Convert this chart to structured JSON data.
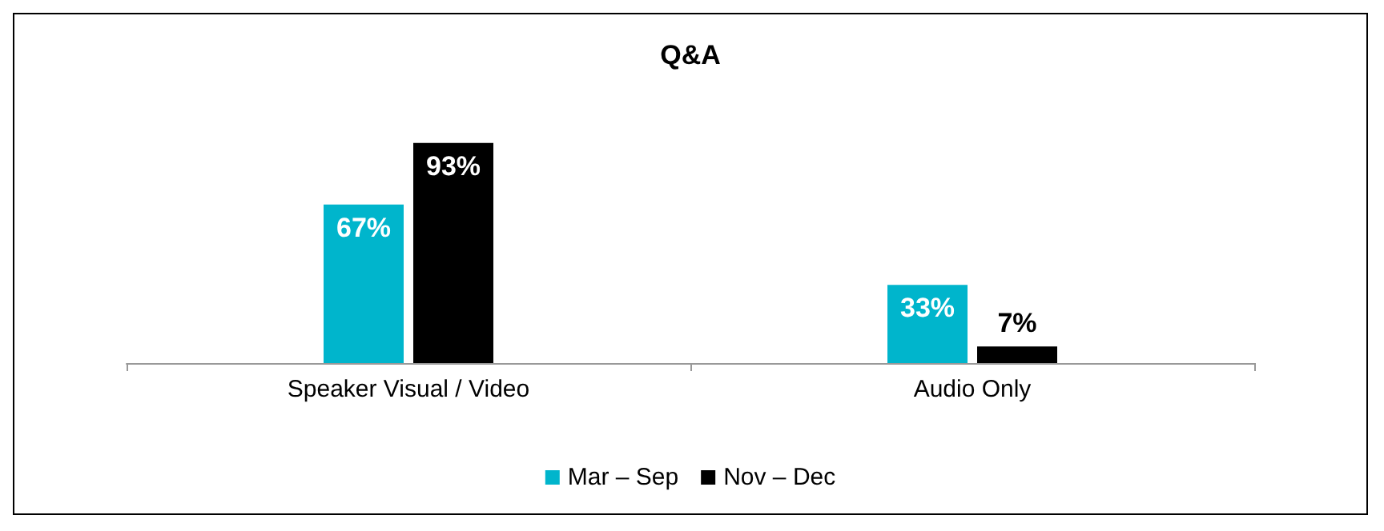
{
  "chart_data": {
    "type": "bar",
    "title": "Q&A",
    "categories": [
      "Speaker Visual / Video",
      "Audio Only"
    ],
    "series": [
      {
        "name": "Mar – Sep",
        "color": "#00b5cc",
        "values": [
          67,
          33
        ],
        "value_labels": [
          "67%",
          "33%"
        ]
      },
      {
        "name": "Nov – Dec",
        "color": "#000000",
        "values": [
          93,
          7
        ],
        "value_labels": [
          "93%",
          "7%"
        ]
      }
    ],
    "legend": "bottom"
  }
}
